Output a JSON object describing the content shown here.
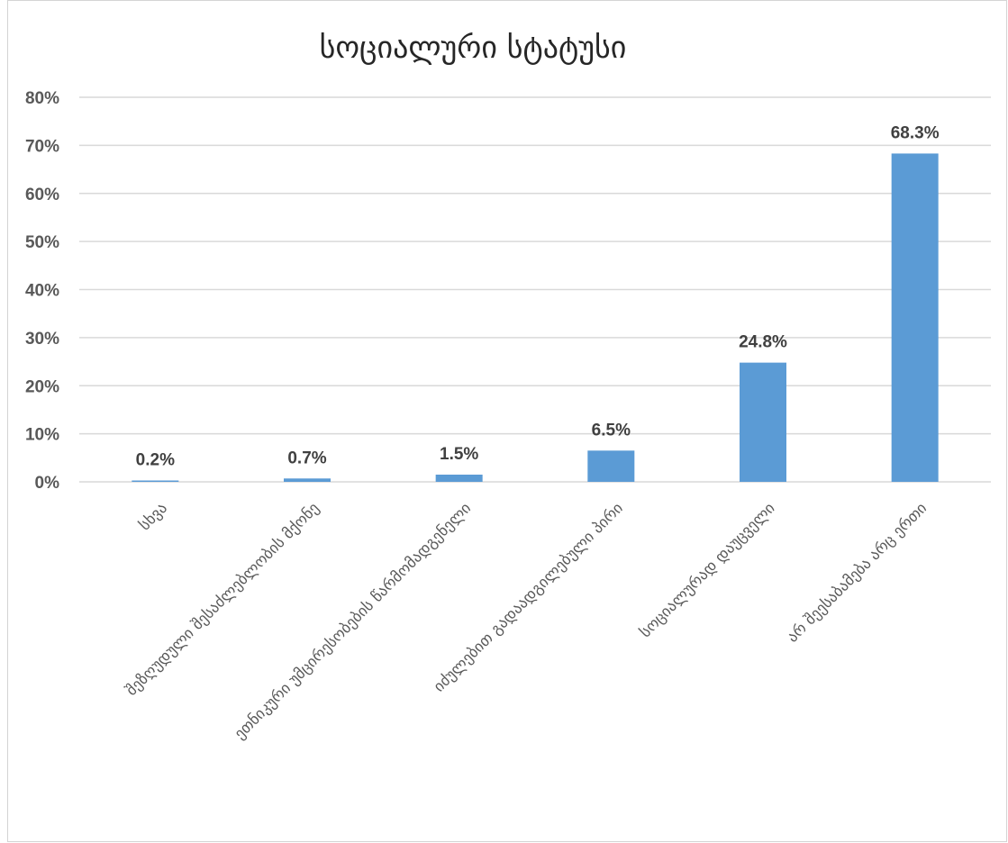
{
  "chart_data": {
    "type": "bar",
    "title": "სოციალური სტატუსი",
    "xlabel": "",
    "ylabel": "",
    "categories": [
      "სხვა",
      "შეზღუდული შესაძლებლობის მქონე",
      "ეთნიკური უმცირესობების წარმომადგენელი",
      "იძულებით გადაადგილებული პირი",
      "სოციალურად დაუცველი",
      "არ შეესაბამება არც ერთი"
    ],
    "values": [
      0.2,
      0.7,
      1.5,
      6.5,
      24.8,
      68.3
    ],
    "data_labels": [
      "0.2%",
      "0.7%",
      "1.5%",
      "6.5%",
      "24.8%",
      "68.3%"
    ],
    "ylim": [
      0,
      80
    ],
    "yticks": [
      0,
      10,
      20,
      30,
      40,
      50,
      60,
      70,
      80
    ],
    "ytick_labels": [
      "0%",
      "10%",
      "20%",
      "30%",
      "40%",
      "50%",
      "60%",
      "70%",
      "80%"
    ],
    "grid": true,
    "legend": "none",
    "colors": {
      "bar": "#5b9bd5",
      "grid": "#d9d9d9",
      "axis_text": "#595959",
      "data_label": "#404040",
      "title": "#262626"
    }
  }
}
